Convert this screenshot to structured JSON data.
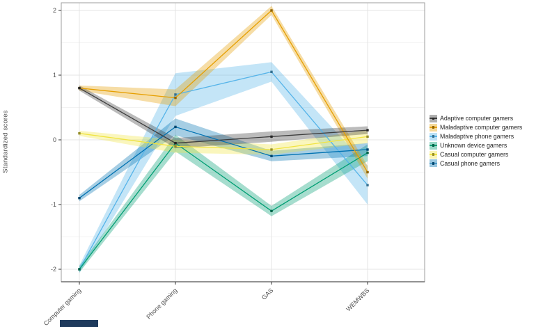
{
  "figure": {
    "background": "#ffffff",
    "panel_background": "#ffffff",
    "panel_border_color": "#9c9c9c",
    "axis_line_color": "#6e6e6e",
    "grid_major_color": "#e4e4e4",
    "grid_minor_color": "#f2f2f2",
    "tick_mark_color": "#333333",
    "tick_label_color": "#4d4d4d",
    "legend_text_color": "#262626"
  },
  "chart_data": {
    "type": "line",
    "title": "",
    "xlabel": "",
    "ylabel": "Standardized scores",
    "categories": [
      "Computer gaming",
      "Phone gaming",
      "GAS",
      "WEMWBS"
    ],
    "y_ticks": [
      2,
      1,
      0,
      -1,
      -2
    ],
    "y_minor": [
      1.5,
      0.5,
      -0.5,
      -1.5
    ],
    "ylim": [
      -2.2,
      2.12
    ],
    "grid": true,
    "legend_position": "right",
    "band_opacity": 0.35,
    "marker": "square",
    "series": [
      {
        "name": "Adaptive computer gamers",
        "color": "#3d3d3d",
        "values": [
          0.8,
          -0.05,
          0.05,
          0.15
        ],
        "ci_halfwidth": [
          0.04,
          0.08,
          0.08,
          0.06
        ]
      },
      {
        "name": "Maladaptive computer gamers",
        "color": "#E69F00",
        "values": [
          0.8,
          0.65,
          2.0,
          -0.5
        ],
        "ci_halfwidth": [
          0.04,
          0.13,
          0.07,
          0.1
        ]
      },
      {
        "name": "Maladaptive phone gamers",
        "color": "#56B4E9",
        "values": [
          -2.0,
          0.7,
          1.05,
          -0.7
        ],
        "ci_halfwidth": [
          0.06,
          0.33,
          0.15,
          0.3
        ]
      },
      {
        "name": "Unknown device gamers",
        "color": "#009E73",
        "values": [
          -2.0,
          -0.05,
          -1.1,
          -0.2
        ],
        "ci_halfwidth": [
          0.05,
          0.13,
          0.08,
          0.13
        ]
      },
      {
        "name": "Casual computer gamers",
        "color": "#F0E442",
        "values": [
          0.1,
          -0.1,
          -0.15,
          0.05
        ],
        "ci_halfwidth": [
          0.04,
          0.1,
          0.08,
          0.1
        ]
      },
      {
        "name": "Casual phone gamers",
        "color": "#0072B2",
        "values": [
          -0.9,
          0.2,
          -0.25,
          -0.15
        ],
        "ci_halfwidth": [
          0.05,
          0.13,
          0.08,
          0.1
        ]
      }
    ]
  },
  "artifact": {
    "color": "#1e3a5c"
  }
}
